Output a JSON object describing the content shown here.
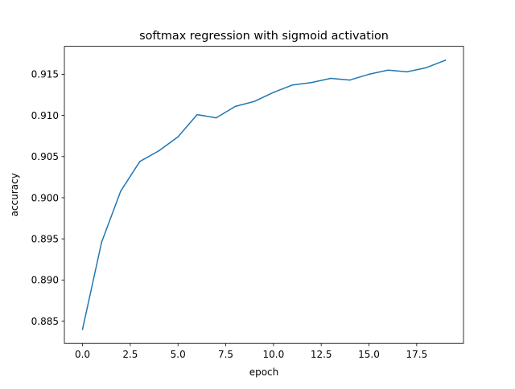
{
  "chart_data": {
    "type": "line",
    "title": "softmax regression with sigmoid activation",
    "xlabel": "epoch",
    "ylabel": "accuracy",
    "xlim": [
      -0.95,
      19.95
    ],
    "ylim": [
      0.8823,
      0.9184
    ],
    "xticks": [
      0.0,
      2.5,
      5.0,
      7.5,
      10.0,
      12.5,
      15.0,
      17.5
    ],
    "xtick_labels": [
      "0.0",
      "2.5",
      "5.0",
      "7.5",
      "10.0",
      "12.5",
      "15.0",
      "17.5"
    ],
    "yticks": [
      0.885,
      0.89,
      0.895,
      0.9,
      0.905,
      0.91,
      0.915
    ],
    "ytick_labels": [
      "0.885",
      "0.890",
      "0.895",
      "0.900",
      "0.905",
      "0.910",
      "0.915"
    ],
    "grid": false,
    "series": [
      {
        "name": "accuracy",
        "color": "#1f77b4",
        "x": [
          0,
          1,
          2,
          3,
          4,
          5,
          6,
          7,
          8,
          9,
          10,
          11,
          12,
          13,
          14,
          15,
          16,
          17,
          18,
          19
        ],
        "values": [
          0.884,
          0.8946,
          0.9008,
          0.9044,
          0.9057,
          0.9074,
          0.9101,
          0.9097,
          0.9111,
          0.9117,
          0.9128,
          0.9137,
          0.914,
          0.9145,
          0.9143,
          0.915,
          0.9155,
          0.9153,
          0.9158,
          0.9167
        ]
      }
    ]
  }
}
